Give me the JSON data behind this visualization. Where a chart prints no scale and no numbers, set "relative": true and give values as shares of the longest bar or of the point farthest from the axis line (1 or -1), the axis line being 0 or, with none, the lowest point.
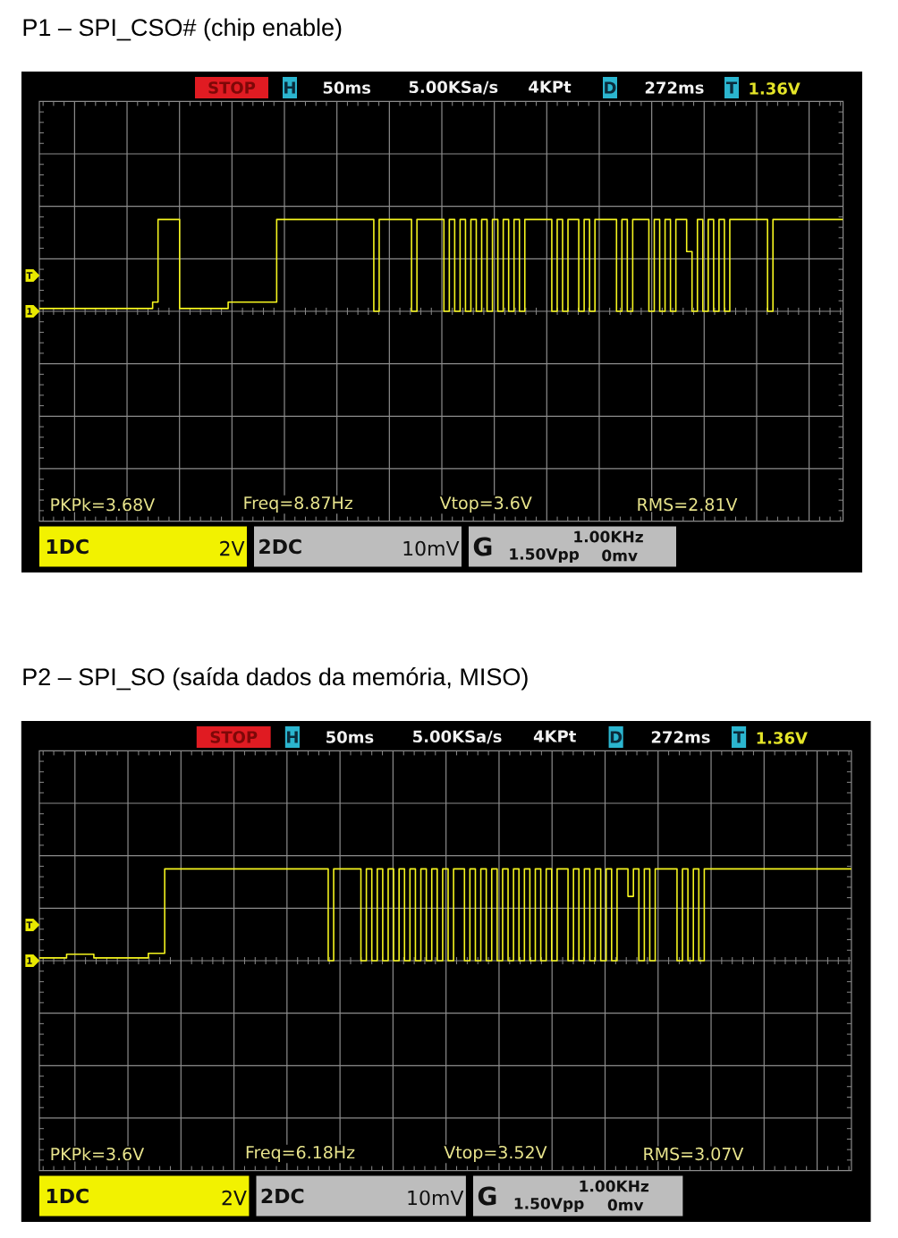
{
  "chart_data": [
    {
      "type": "step",
      "title": "P1 – SPI_CSO# (chip enable)",
      "relative": true,
      "grid": true,
      "color": "#f5f51e",
      "categories": [
        null,
        null,
        null,
        null,
        null,
        null,
        null,
        null,
        null,
        null,
        null,
        null,
        null,
        null,
        null,
        null,
        null,
        null,
        null,
        null,
        null,
        null,
        null,
        null,
        null,
        null,
        null,
        null,
        null,
        null,
        null,
        null,
        null,
        null,
        null,
        null,
        null,
        null,
        null,
        null,
        null,
        null,
        null,
        null,
        null,
        null,
        null,
        null,
        null,
        null,
        null,
        null,
        null,
        null,
        null,
        null,
        null,
        null,
        null,
        null,
        null,
        null,
        null,
        null,
        null,
        null,
        null,
        null,
        null,
        null,
        null,
        null,
        null,
        null,
        null,
        null,
        null,
        null,
        null,
        null,
        null,
        null,
        null,
        null,
        null,
        null,
        null,
        null,
        null,
        null,
        null,
        null,
        null,
        null,
        null,
        null,
        null,
        null,
        null,
        null,
        null,
        null,
        null,
        null,
        null,
        null,
        null,
        null,
        null,
        null,
        null,
        null,
        null,
        null,
        null,
        null,
        null,
        null,
        null,
        null,
        null,
        null,
        null,
        null,
        null,
        null,
        null,
        null,
        null,
        null,
        null,
        null,
        null,
        null,
        null,
        null,
        null,
        null,
        null,
        null,
        null,
        null,
        null,
        null,
        null,
        null,
        null,
        null,
        null,
        null
      ],
      "values": [
        0.03,
        0.03,
        0.03,
        0.03,
        0.03,
        0.03,
        0.03,
        0.03,
        0.03,
        0.03,
        0.03,
        0.03,
        0.03,
        0.03,
        0.03,
        0.03,
        0.03,
        0.03,
        0.03,
        0.03,
        0.03,
        0.1,
        1,
        1,
        1,
        1,
        0.03,
        0.03,
        0.03,
        0.03,
        0.03,
        0.03,
        0.03,
        0.03,
        0.03,
        0.1,
        0.1,
        0.1,
        0.1,
        0.1,
        0.1,
        0.1,
        0.1,
        0.1,
        1,
        1,
        1,
        1,
        1,
        1,
        1,
        1,
        1,
        1,
        1,
        1,
        1,
        1,
        1,
        1,
        1,
        1,
        0,
        1,
        1,
        1,
        1,
        1,
        1,
        0,
        1,
        1,
        1,
        1,
        1,
        0,
        1,
        0,
        1,
        0,
        1,
        0,
        1,
        0,
        1,
        0,
        1,
        0,
        1,
        0,
        1,
        1,
        1,
        1,
        1,
        0,
        1,
        0,
        1,
        1,
        0,
        1,
        0,
        1,
        1,
        1,
        1,
        0,
        1,
        0,
        1,
        1,
        1,
        0,
        1,
        0,
        1,
        0,
        1,
        1,
        0.65,
        0,
        1,
        0,
        1,
        0,
        1,
        0,
        1,
        1,
        1,
        1,
        1,
        1,
        1,
        0,
        1,
        1,
        1,
        1,
        1,
        1,
        1,
        1,
        1,
        1,
        1,
        1,
        1,
        1
      ],
      "annotations": [
        "STOP",
        "H",
        "50ms",
        "5.00KSa/s",
        "4KPt",
        "D",
        "272ms",
        "T",
        "1.36V",
        "PKPk=3.68V",
        "Freq=8.87Hz",
        "Vtop=3.6V",
        "RMS=2.81V",
        "1DC",
        "2V",
        "2DC",
        "10mV",
        "G",
        "1.00KHz",
        "1.50Vpp",
        "0mv",
        "T",
        "1"
      ]
    },
    {
      "type": "step",
      "title": "P2 – SPI_SO (saída dados da memória, MISO)",
      "relative": true,
      "grid": true,
      "color": "#f5f51e",
      "categories": [
        null,
        null,
        null,
        null,
        null,
        null,
        null,
        null,
        null,
        null,
        null,
        null,
        null,
        null,
        null,
        null,
        null,
        null,
        null,
        null,
        null,
        null,
        null,
        null,
        null,
        null,
        null,
        null,
        null,
        null,
        null,
        null,
        null,
        null,
        null,
        null,
        null,
        null,
        null,
        null,
        null,
        null,
        null,
        null,
        null,
        null,
        null,
        null,
        null,
        null,
        null,
        null,
        null,
        null,
        null,
        null,
        null,
        null,
        null,
        null,
        null,
        null,
        null,
        null,
        null,
        null,
        null,
        null,
        null,
        null,
        null,
        null,
        null,
        null,
        null,
        null,
        null,
        null,
        null,
        null,
        null,
        null,
        null,
        null,
        null,
        null,
        null,
        null,
        null,
        null,
        null,
        null,
        null,
        null,
        null,
        null,
        null,
        null,
        null,
        null,
        null,
        null,
        null,
        null,
        null,
        null,
        null,
        null,
        null,
        null,
        null,
        null,
        null,
        null,
        null,
        null,
        null,
        null,
        null,
        null,
        null,
        null,
        null,
        null,
        null,
        null,
        null,
        null,
        null,
        null,
        null,
        null,
        null,
        null,
        null,
        null,
        null,
        null,
        null,
        null,
        null,
        null,
        null,
        null,
        null,
        null,
        null,
        null,
        null,
        null
      ],
      "values": [
        0.03,
        0.03,
        0.03,
        0.03,
        0.03,
        0.07,
        0.07,
        0.07,
        0.07,
        0.07,
        0.03,
        0.03,
        0.03,
        0.03,
        0.03,
        0.03,
        0.03,
        0.03,
        0.03,
        0.03,
        0.08,
        0.08,
        0.08,
        1,
        1,
        1,
        1,
        1,
        1,
        1,
        1,
        1,
        1,
        1,
        1,
        1,
        1,
        1,
        1,
        1,
        1,
        1,
        1,
        1,
        1,
        1,
        1,
        1,
        1,
        1,
        1,
        1,
        1,
        0,
        1,
        1,
        1,
        1,
        1,
        0,
        1,
        0,
        1,
        0,
        1,
        0,
        1,
        0,
        1,
        0,
        1,
        0,
        1,
        0,
        1,
        0,
        1,
        1,
        0,
        1,
        0,
        1,
        0,
        1,
        0,
        1,
        0,
        1,
        0,
        1,
        0,
        1,
        0,
        1,
        0,
        1,
        1,
        0,
        1,
        0,
        1,
        0,
        1,
        0,
        1,
        0,
        1,
        1,
        0.7,
        1,
        0,
        1,
        0,
        1,
        1,
        1,
        1,
        0,
        1,
        0,
        1,
        0,
        1,
        1,
        1,
        1,
        1,
        1,
        1,
        1,
        1,
        1,
        1,
        1,
        1,
        1,
        1,
        1,
        1,
        1,
        1,
        1,
        1,
        1,
        1,
        1,
        1,
        1,
        1,
        1
      ],
      "annotations": [
        "STOP",
        "H",
        "50ms",
        "5.00KSa/s",
        "4KPt",
        "D",
        "272ms",
        "T",
        "1.36V",
        "PKPk=3.6V",
        "Freq=6.18Hz",
        "Vtop=3.52V",
        "RMS=3.07V",
        "1DC",
        "2V",
        "2DC",
        "10mV",
        "G",
        "1.00KHz",
        "1.50Vpp",
        "0mv",
        "T",
        "1"
      ]
    }
  ]
}
